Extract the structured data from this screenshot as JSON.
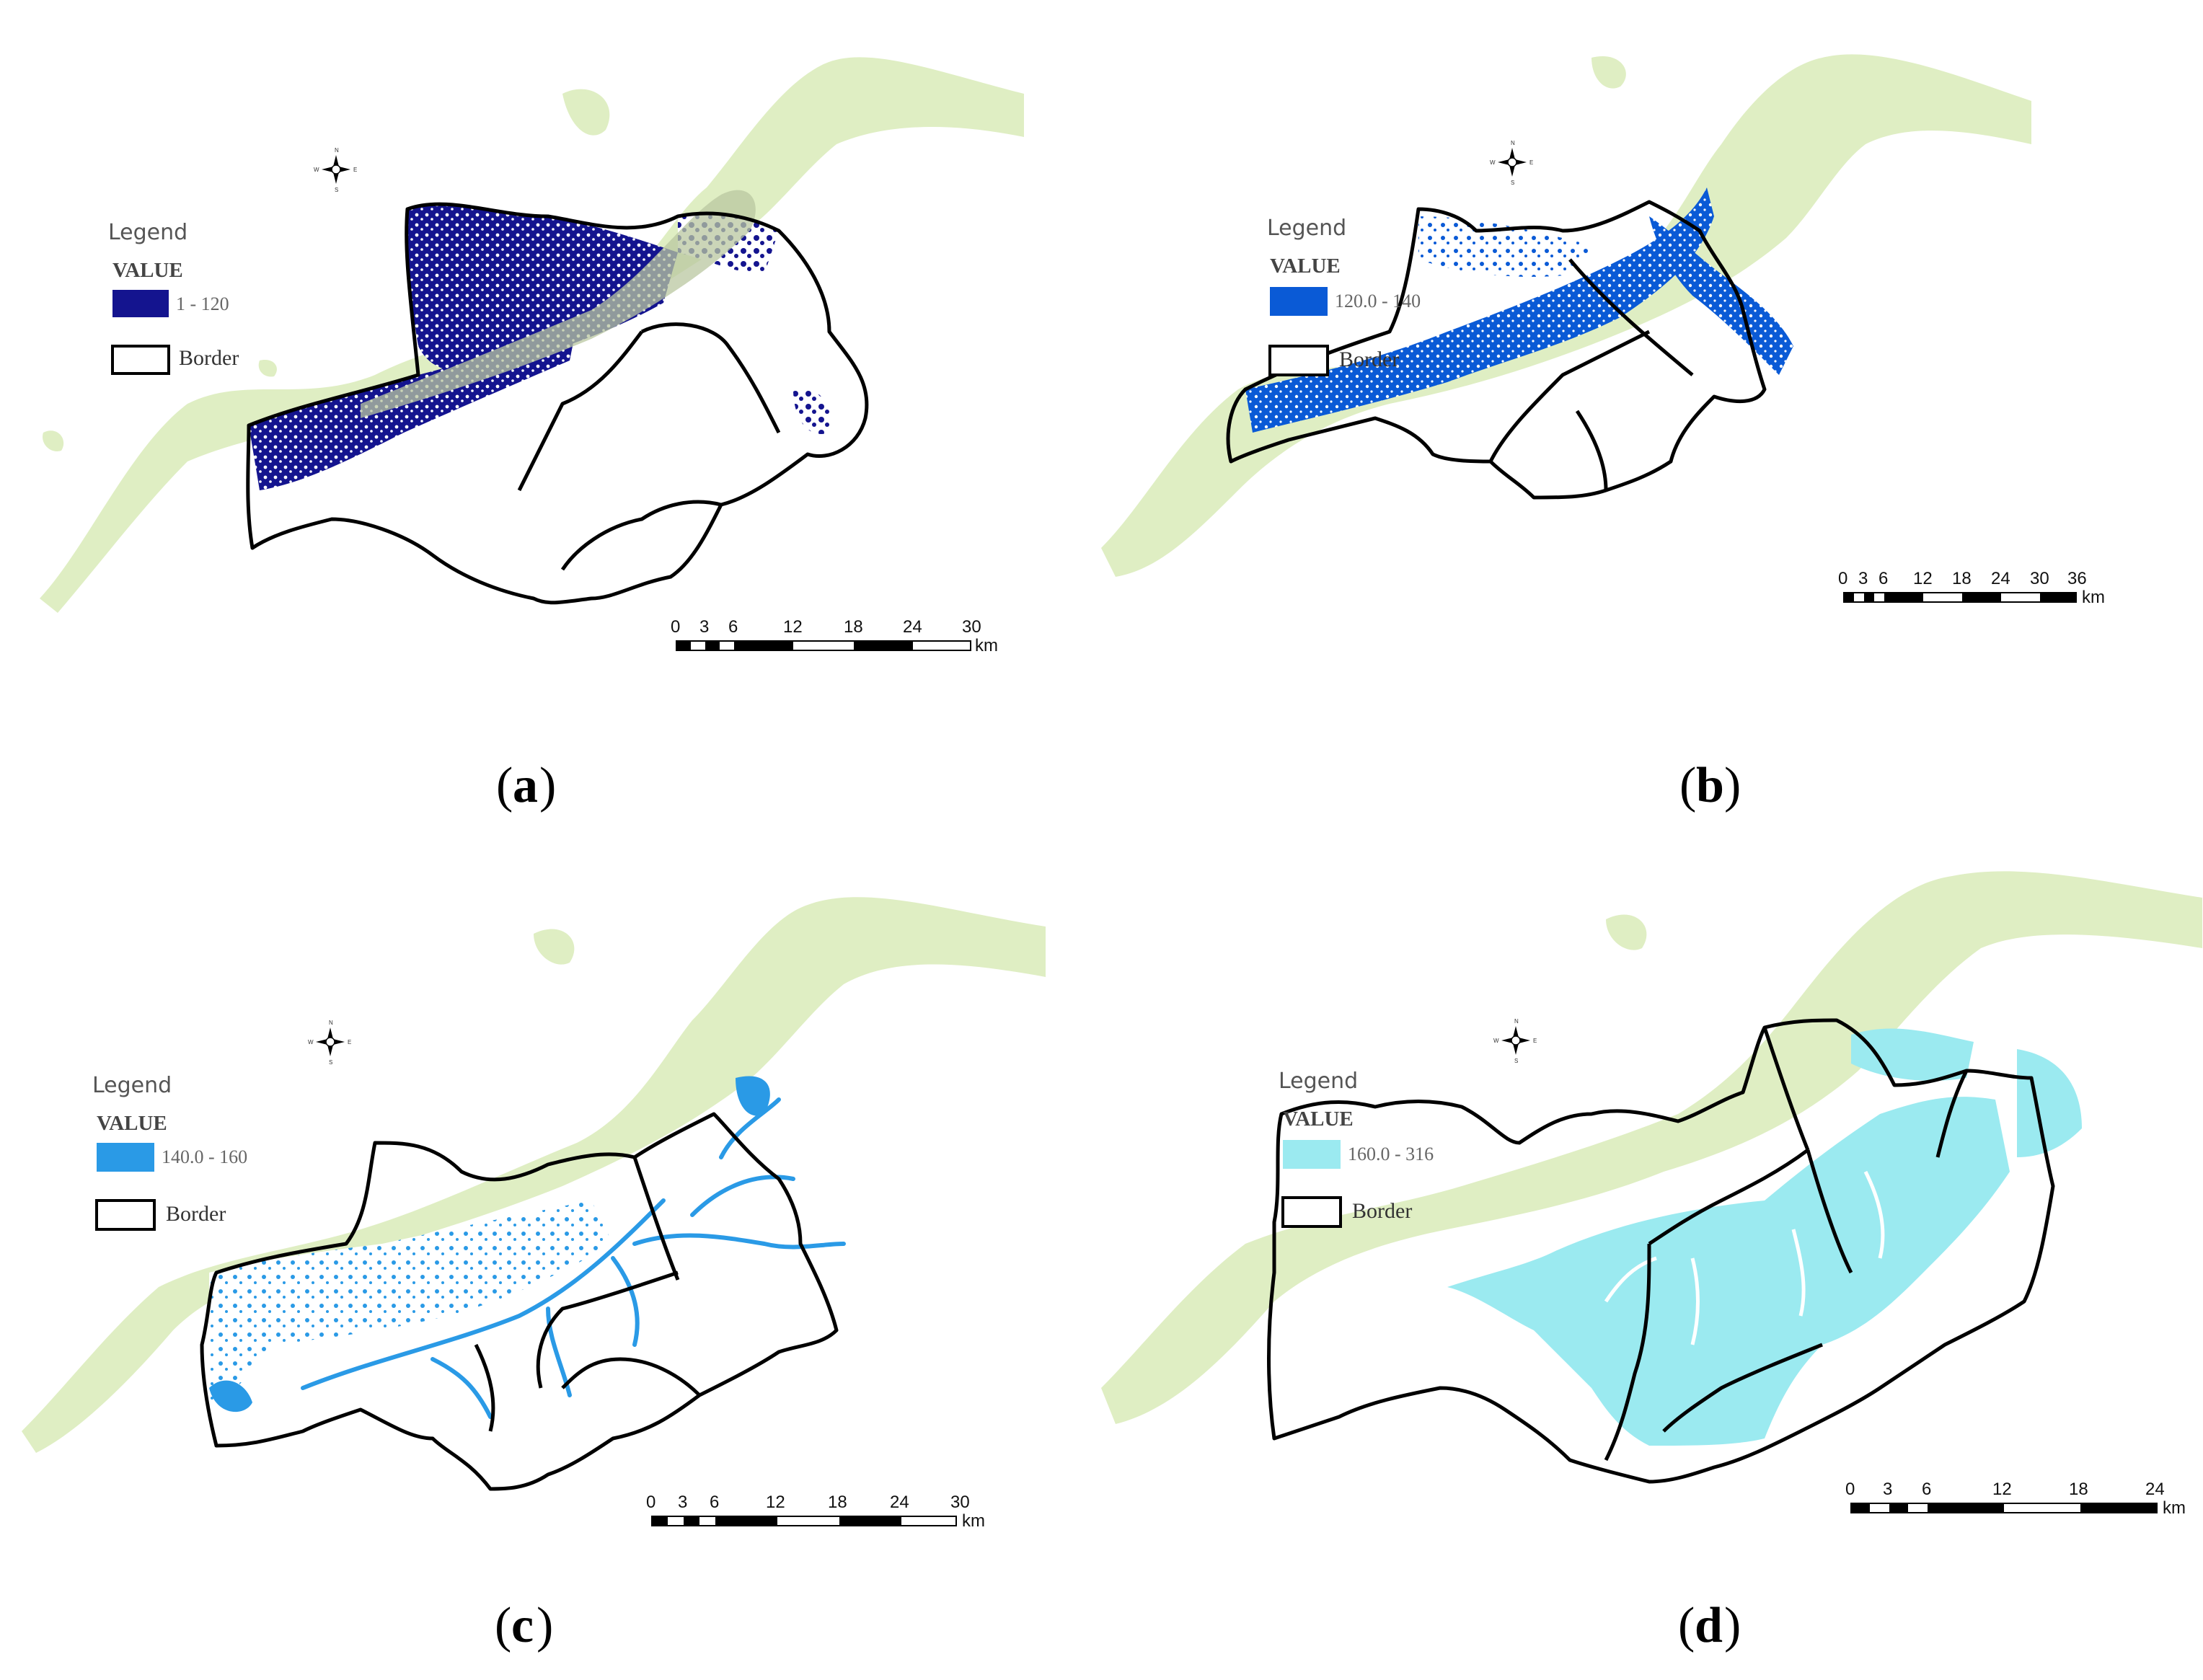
{
  "panels": [
    {
      "caption": "a",
      "legend": {
        "title": "Legend",
        "field": "VALUE",
        "range_label": "1 - 120",
        "border_label": "Border"
      },
      "fill_color": "#14148f",
      "scale": {
        "ticks": [
          "0",
          "3",
          "6",
          "12",
          "18",
          "24",
          "30"
        ],
        "unit": "km"
      }
    },
    {
      "caption": "b",
      "legend": {
        "title": "Legend",
        "field": "VALUE",
        "range_label": "120.0 - 140",
        "border_label": "Border"
      },
      "fill_color": "#0a5ad6",
      "scale": {
        "ticks": [
          "0",
          "3",
          "6",
          "12",
          "18",
          "24",
          "30",
          "36"
        ],
        "unit": "km"
      }
    },
    {
      "caption": "c",
      "legend": {
        "title": "Legend",
        "field": "VALUE",
        "range_label": "140.0 - 160",
        "border_label": "Border"
      },
      "fill_color": "#2a9ae6",
      "scale": {
        "ticks": [
          "0",
          "3",
          "6",
          "12",
          "18",
          "24",
          "30"
        ],
        "unit": "km"
      }
    },
    {
      "caption": "d",
      "legend": {
        "title": "Legend",
        "field": "VALUE",
        "range_label": "160.0 - 316",
        "border_label": "Border"
      },
      "fill_color": "#9beaf0",
      "scale": {
        "ticks": [
          "0",
          "3",
          "6",
          "12",
          "18",
          "24"
        ],
        "unit": "km"
      }
    }
  ],
  "colors": {
    "river": "#dfeec3",
    "border": "#000000",
    "overlay": "#b9c7a0"
  },
  "icons": {
    "north_arrow": "north-arrow-icon",
    "north_letters": [
      "N",
      "E",
      "S",
      "W"
    ]
  }
}
